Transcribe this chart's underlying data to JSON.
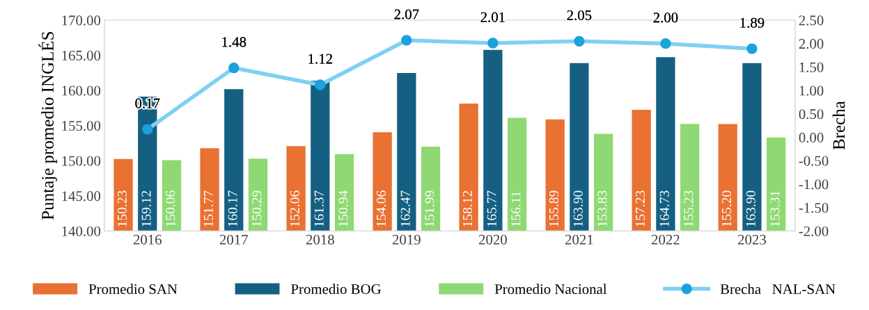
{
  "chart_data": {
    "type": "bar",
    "ylabel": "Puntaje promedio INGLÉS",
    "y2label": "Brecha",
    "categories": [
      "2016",
      "2017",
      "2018",
      "2019",
      "2020",
      "2021",
      "2022",
      "2023"
    ],
    "series": [
      {
        "name": "Promedio SAN",
        "color": "#e97132",
        "values": [
          150.23,
          151.77,
          152.06,
          154.06,
          158.12,
          155.89,
          157.23,
          155.2
        ],
        "value_labels": [
          "150.23",
          "151.77",
          "152.06",
          "154.06",
          "158.12",
          "155.89",
          "157.23",
          "155.20"
        ]
      },
      {
        "name": "Promedio BOG",
        "color": "#156082",
        "values": [
          159.12,
          160.17,
          161.37,
          162.47,
          165.77,
          163.9,
          164.73,
          163.9
        ],
        "value_labels": [
          "159.12",
          "160.17",
          "161.37",
          "162.47",
          "165.77",
          "163.90",
          "164.73",
          "163.90"
        ]
      },
      {
        "name": "Promedio Nacional",
        "color": "#8ed973",
        "values": [
          150.06,
          150.29,
          150.94,
          151.99,
          156.11,
          153.83,
          155.23,
          153.31
        ],
        "value_labels": [
          "150.06",
          "150.29",
          "150.94",
          "151.99",
          "156.11",
          "153.83",
          "155.23",
          "153.31"
        ]
      },
      {
        "name": "Brecha   NAL-SAN",
        "type": "line",
        "axis": "y2",
        "color": "#7fd0f3",
        "marker": "circle",
        "values": [
          0.17,
          1.48,
          1.12,
          2.07,
          2.01,
          2.05,
          2.0,
          1.89
        ],
        "value_labels": [
          "0.17",
          "1.48",
          "1.12",
          "2.07",
          "2.01",
          "2.05",
          "2.00",
          "1.89"
        ]
      }
    ],
    "ylim": [
      140,
      170
    ],
    "yticks": [
      {
        "value": 140,
        "label": "140.00"
      },
      {
        "value": 145,
        "label": "145.00"
      },
      {
        "value": 150,
        "label": "150.00"
      },
      {
        "value": 155,
        "label": "155.00"
      },
      {
        "value": 160,
        "label": "160.00"
      },
      {
        "value": 165,
        "label": "165.00"
      },
      {
        "value": 170,
        "label": "170.00"
      }
    ],
    "y2lim": [
      -2,
      2.5
    ],
    "y2ticks": [
      {
        "value": -2,
        "label": "-2.00"
      },
      {
        "value": -1.5,
        "label": "-1.50"
      },
      {
        "value": -1,
        "label": "-1.00"
      },
      {
        "value": -0.5,
        "label": "-0.50"
      },
      {
        "value": 0,
        "label": "0.00"
      },
      {
        "value": 0.5,
        "label": "0.50"
      },
      {
        "value": 1,
        "label": "1.00"
      },
      {
        "value": 1.5,
        "label": "1.50"
      },
      {
        "value": 2,
        "label": "2.00"
      },
      {
        "value": 2.5,
        "label": "2.50"
      }
    ],
    "grid": false,
    "legend": "bottom"
  }
}
